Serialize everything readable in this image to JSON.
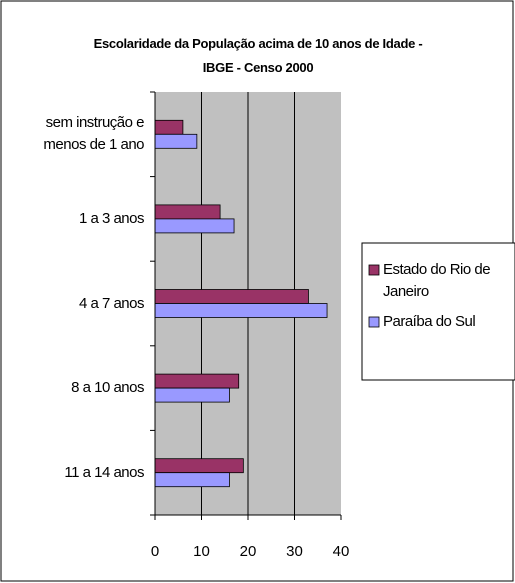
{
  "chart_data": {
    "type": "bar",
    "orientation": "horizontal",
    "title": "Escolaridade da População acima de 10 anos de Idade - IBGE - Censo 2000",
    "categories": [
      "sem instrução e menos de 1 ano",
      "1 a 3 anos",
      "4 a 7 anos",
      "8 a 10 anos",
      "11 a 14 anos"
    ],
    "series": [
      {
        "name": "Estado do Rio de Janeiro",
        "color": "#993366",
        "values": [
          6,
          14,
          33,
          18,
          19
        ]
      },
      {
        "name": "Paraíba do Sul",
        "color": "#9999ff",
        "values": [
          9,
          17,
          37,
          16,
          16
        ]
      }
    ],
    "xlim": [
      0,
      40
    ],
    "xticks": [
      0,
      10,
      20,
      30,
      40
    ],
    "grid": true,
    "legend": "right"
  }
}
